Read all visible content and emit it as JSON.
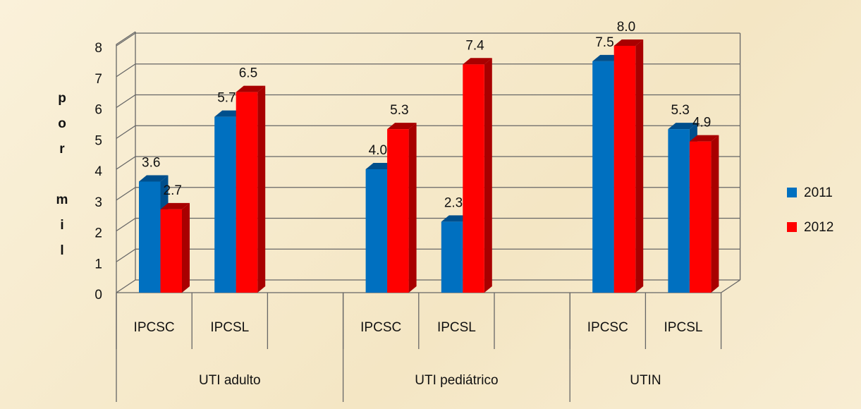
{
  "chart_data": {
    "type": "bar3d",
    "ylabel": "por mil",
    "ylim": [
      0,
      8
    ],
    "yticks": [
      0,
      1,
      2,
      3,
      4,
      5,
      6,
      7,
      8
    ],
    "grid": true,
    "groups": [
      {
        "name": "UTI adulto",
        "categories": [
          "IPCSC",
          "IPCSL",
          null
        ]
      },
      {
        "name": "UTI pediátrico",
        "categories": [
          "IPCSC",
          "IPCSL",
          null
        ]
      },
      {
        "name": "UTIN",
        "categories": [
          "IPCSC",
          "IPCSL"
        ]
      }
    ],
    "legend": "right",
    "series": [
      {
        "name": "2011",
        "color": "#0070c0",
        "side": "#004f8c",
        "values": [
          3.6,
          5.7,
          null,
          4.0,
          2.3,
          null,
          7.5,
          5.3
        ],
        "value_labels": [
          "3.6",
          "5.7",
          null,
          "4.0",
          "2.3",
          null,
          "7.5",
          "5.3"
        ]
      },
      {
        "name": "2012",
        "color": "#ff0000",
        "side": "#a80000",
        "values": [
          2.7,
          6.5,
          null,
          5.3,
          7.4,
          null,
          8.0,
          4.9
        ],
        "value_labels": [
          "2.7",
          "6.5",
          null,
          "5.3",
          "7.4",
          null,
          "8.0",
          "4.9"
        ]
      }
    ]
  }
}
